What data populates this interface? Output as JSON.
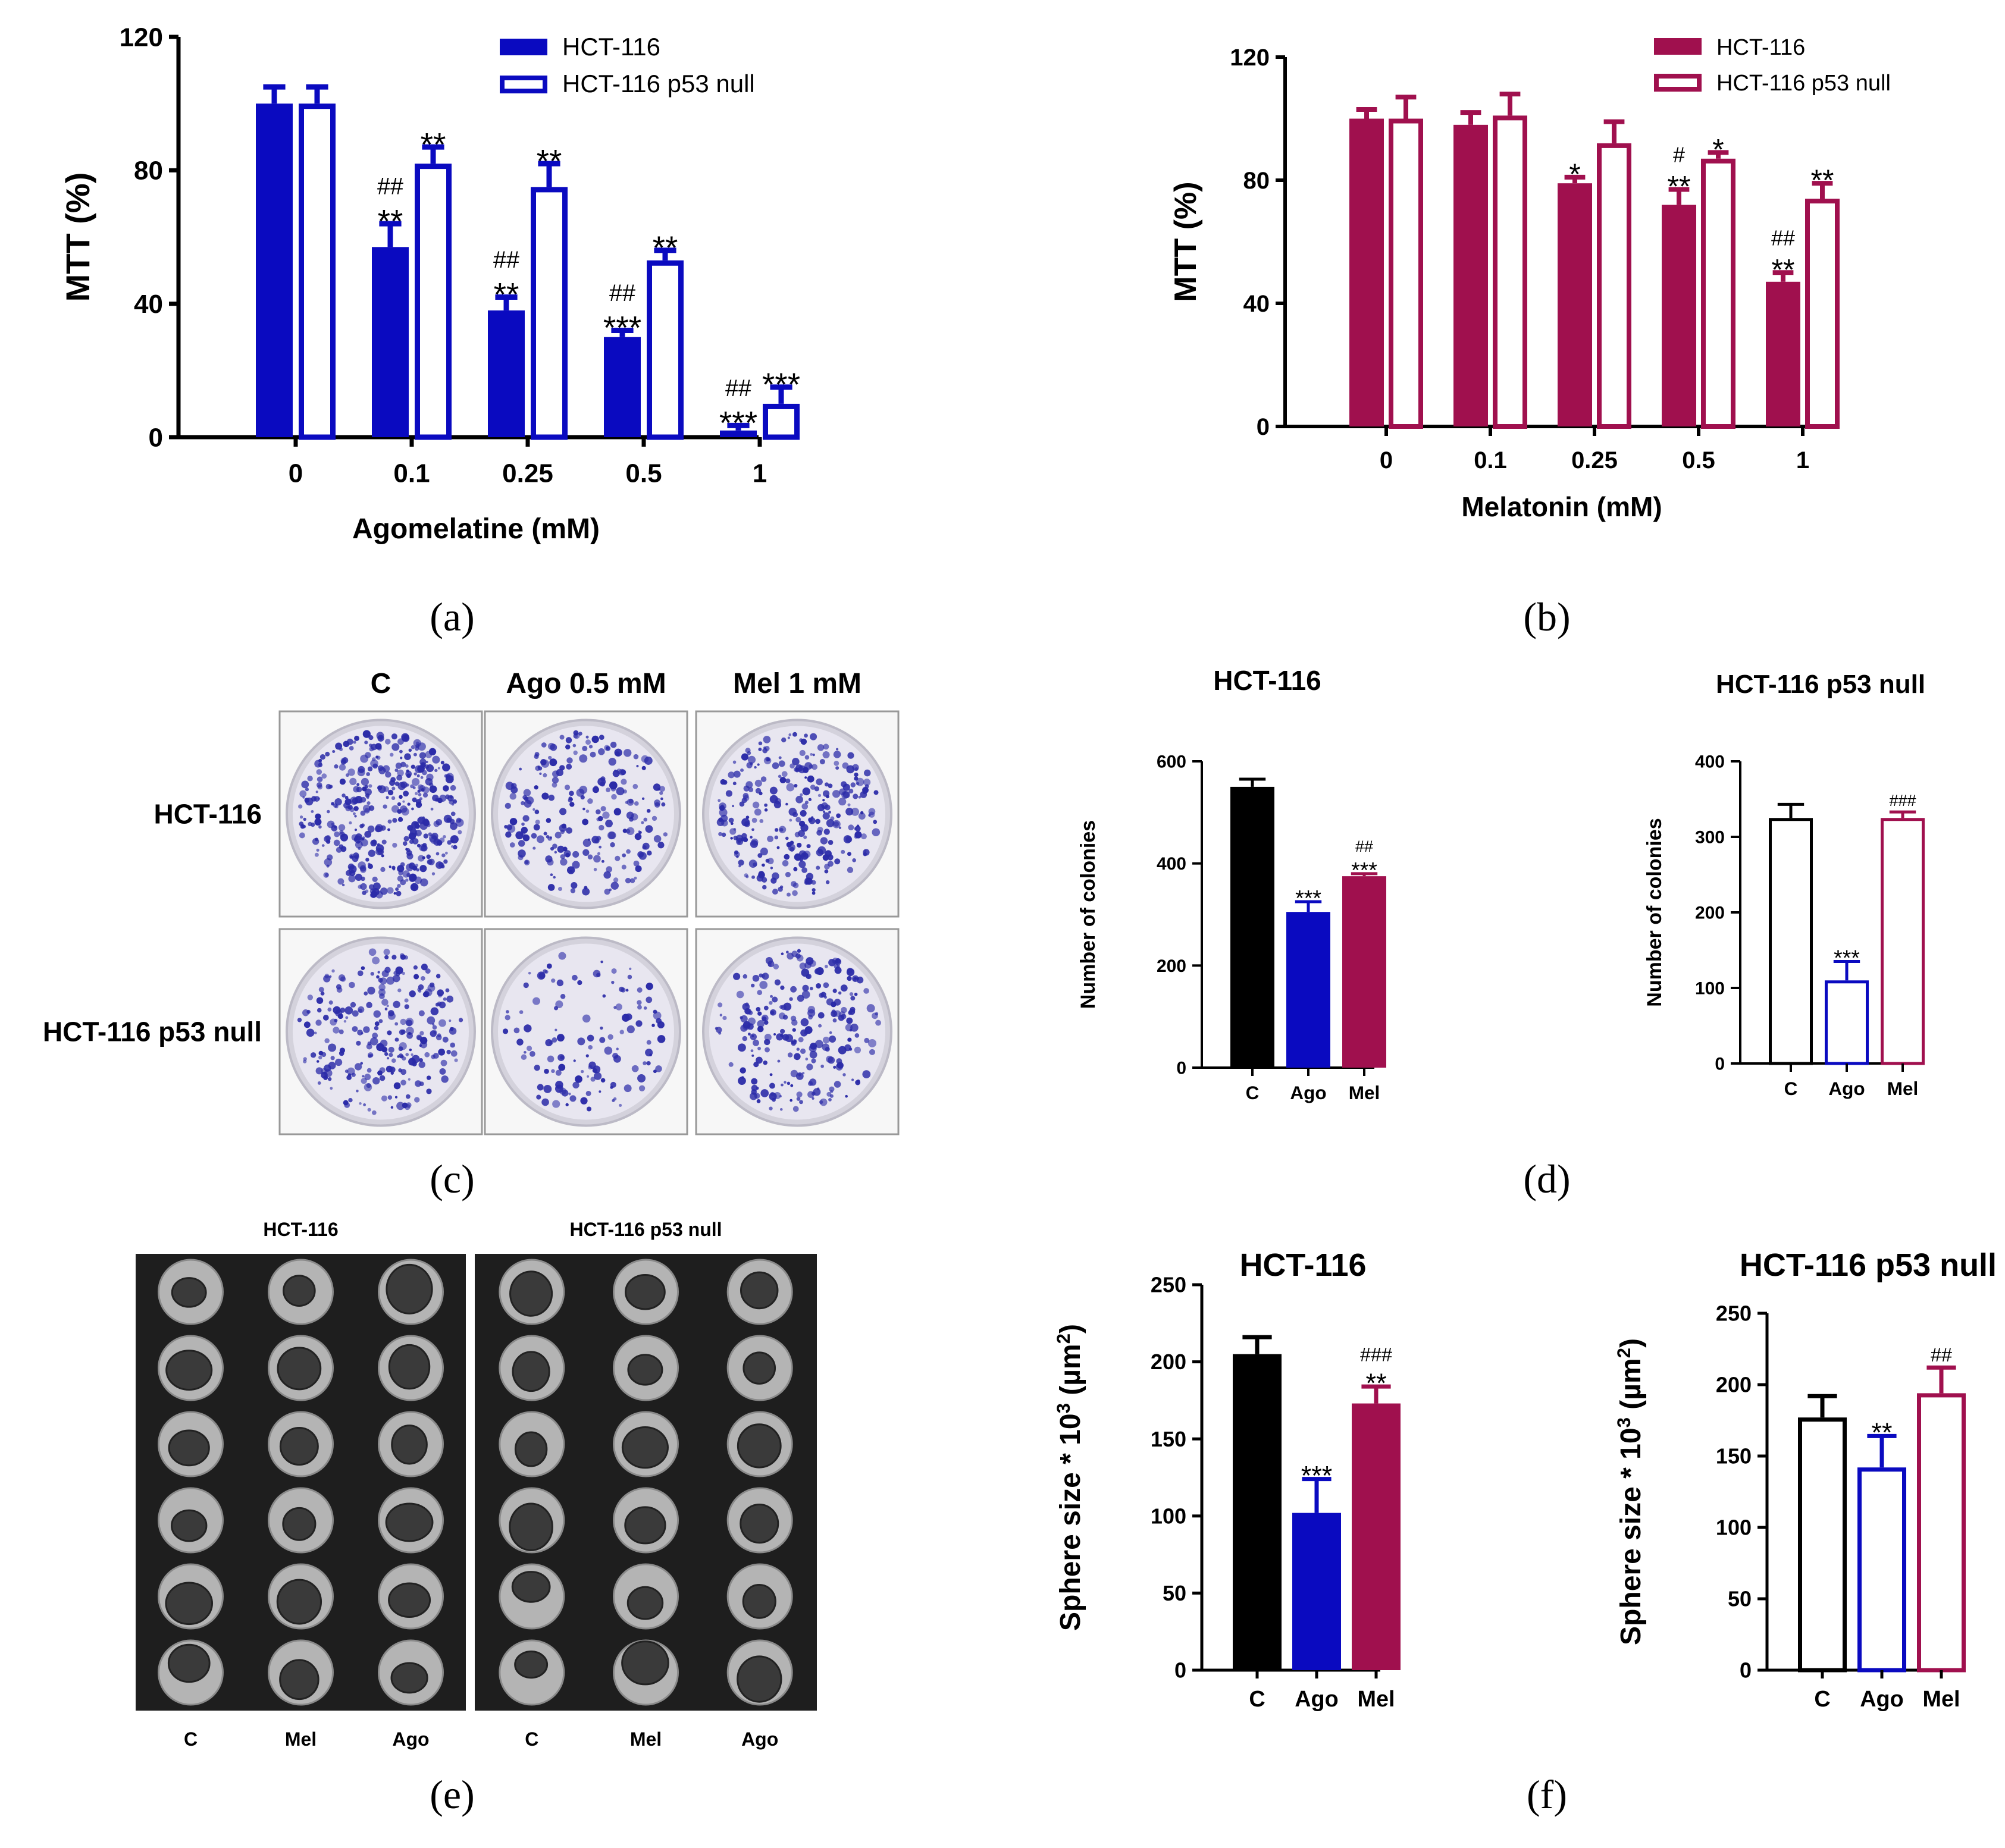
{
  "panel_labels": [
    "(a)",
    "(b)",
    "(c)",
    "(d)",
    "(e)",
    "(f)"
  ],
  "colors": {
    "blue": "#0a0ac0",
    "maroon": "#a0104e",
    "black": "#000000",
    "dish_bg": "#e8e6f0",
    "colony": "#2b2ba8",
    "sphere_bg": "#1e1e1e",
    "well": "#b4b4b4",
    "spheroid": "#3a3a3a"
  },
  "chart_data": [
    {
      "id": "a",
      "type": "bar",
      "title": "",
      "xlabel": "Agomelatine (mM)",
      "ylabel": "MTT (%)",
      "ylim": [
        0,
        120
      ],
      "yticks": [
        "0",
        "40",
        "80",
        "120"
      ],
      "categories": [
        "0",
        "0.1",
        "0.25",
        "0.5",
        "1"
      ],
      "legend": "top-right",
      "series": [
        {
          "name": "HCT-116",
          "style": "filled",
          "color": "#0a0ac0",
          "values": [
            100,
            57,
            38,
            30,
            2
          ],
          "errors": [
            5,
            7,
            4,
            2,
            1.5
          ],
          "annotations": [
            [
              "",
              ""
            ],
            [
              "##",
              "**"
            ],
            [
              "##",
              "**"
            ],
            [
              "##",
              "***"
            ],
            [
              "##",
              "***"
            ]
          ]
        },
        {
          "name": "HCT-116 p53 null",
          "style": "open",
          "color": "#0a0ac0",
          "values": [
            100,
            82,
            75,
            53,
            10
          ],
          "errors": [
            5,
            5,
            7,
            3,
            5
          ],
          "annotations": [
            [
              ""
            ],
            [
              "**"
            ],
            [
              "**"
            ],
            [
              "**"
            ],
            [
              "***"
            ]
          ]
        }
      ]
    },
    {
      "id": "b",
      "type": "bar",
      "title": "",
      "xlabel": "Melatonin (mM)",
      "ylabel": "MTT (%)",
      "ylim": [
        0,
        120
      ],
      "yticks": [
        "0",
        "40",
        "80",
        "120"
      ],
      "categories": [
        "0",
        "0.1",
        "0.25",
        "0.5",
        "1"
      ],
      "legend": "top-right",
      "series": [
        {
          "name": "HCT-116",
          "style": "filled",
          "color": "#a0104e",
          "values": [
            100,
            98,
            79,
            72,
            47
          ],
          "errors": [
            3,
            4,
            2,
            5,
            3
          ],
          "annotations": [
            [
              ""
            ],
            [
              ""
            ],
            [
              "*"
            ],
            [
              "#",
              "**"
            ],
            [
              "##",
              "**"
            ]
          ]
        },
        {
          "name": "HCT-116 p53 null",
          "style": "open",
          "color": "#a0104e",
          "values": [
            100,
            101,
            92,
            87,
            74
          ],
          "errors": [
            7,
            7,
            7,
            2,
            5
          ],
          "annotations": [
            [
              ""
            ],
            [
              ""
            ],
            [
              ""
            ],
            [
              "*"
            ],
            [
              "**"
            ]
          ]
        }
      ]
    },
    {
      "id": "d1",
      "type": "bar",
      "title": "HCT-116",
      "xlabel": "",
      "ylabel": "Number of colonies",
      "ylim": [
        0,
        600
      ],
      "yticks": [
        "0",
        "200",
        "400",
        "600"
      ],
      "categories": [
        "C",
        "Ago",
        "Mel"
      ],
      "values": [
        550,
        305,
        375
      ],
      "errors": [
        15,
        20,
        5
      ],
      "styles": [
        "filled",
        "filled",
        "filled"
      ],
      "colors": [
        "#000000",
        "#0a0ac0",
        "#a0104e"
      ],
      "annotations": [
        [
          ""
        ],
        [
          "***"
        ],
        [
          "##",
          "***"
        ]
      ]
    },
    {
      "id": "d2",
      "type": "bar",
      "title": "HCT-116 p53 null",
      "xlabel": "",
      "ylabel": "Number of colonies",
      "ylim": [
        0,
        400
      ],
      "yticks": [
        "0",
        "100",
        "200",
        "300",
        "400"
      ],
      "categories": [
        "C",
        "Ago",
        "Mel"
      ],
      "values": [
        325,
        110,
        325
      ],
      "errors": [
        18,
        25,
        8
      ],
      "styles": [
        "open",
        "open",
        "open"
      ],
      "colors": [
        "#000000",
        "#0a0ac0",
        "#a0104e"
      ],
      "annotations": [
        [
          ""
        ],
        [
          "***"
        ],
        [
          "###"
        ]
      ]
    },
    {
      "id": "f1",
      "type": "bar",
      "title": "HCT-116",
      "xlabel": "",
      "ylabel": "Sphere size * 10",
      "ylabel_sup": "3",
      "ylabel_unit": " (µm",
      "ylabel_unit_sup": "2",
      "ylabel_close": ")",
      "ylim": [
        0,
        250
      ],
      "yticks": [
        "0",
        "50",
        "100",
        "150",
        "200",
        "250"
      ],
      "categories": [
        "C",
        "Ago",
        "Mel"
      ],
      "values": [
        205,
        102,
        173
      ],
      "errors": [
        11,
        22,
        11
      ],
      "styles": [
        "filled",
        "filled",
        "filled"
      ],
      "colors": [
        "#000000",
        "#0a0ac0",
        "#a0104e"
      ],
      "annotations": [
        [
          ""
        ],
        [
          "***"
        ],
        [
          "###",
          "**"
        ]
      ]
    },
    {
      "id": "f2",
      "type": "bar",
      "title": "HCT-116 p53 null",
      "xlabel": "",
      "ylabel": "Sphere size * 10",
      "ylabel_sup": "3",
      "ylabel_unit": " (µm",
      "ylabel_unit_sup": "2",
      "ylabel_close": ")",
      "ylim": [
        0,
        250
      ],
      "yticks": [
        "0",
        "50",
        "100",
        "150",
        "200",
        "250"
      ],
      "categories": [
        "C",
        "Ago",
        "Mel"
      ],
      "values": [
        177,
        142,
        194
      ],
      "errors": [
        15,
        22,
        18
      ],
      "styles": [
        "open",
        "open",
        "open"
      ],
      "colors": [
        "#000000",
        "#0a0ac0",
        "#a0104e"
      ],
      "annotations": [
        [
          ""
        ],
        [
          "**"
        ],
        [
          "##"
        ]
      ]
    }
  ],
  "panel_c": {
    "col_headers": [
      "C",
      "Ago 0.5 mM",
      "Mel 1 mM"
    ],
    "row_headers": [
      "HCT-116",
      "HCT-116 p53 null"
    ],
    "densities": [
      [
        1.0,
        0.55,
        0.7
      ],
      [
        0.6,
        0.3,
        0.6
      ]
    ]
  },
  "panel_e": {
    "group_titles": [
      "HCT-116",
      "HCT-116 p53 null"
    ],
    "col_labels": [
      [
        "C",
        "Mel",
        "Ago"
      ],
      [
        "C",
        "Mel",
        "Ago"
      ]
    ],
    "rows": 6
  }
}
